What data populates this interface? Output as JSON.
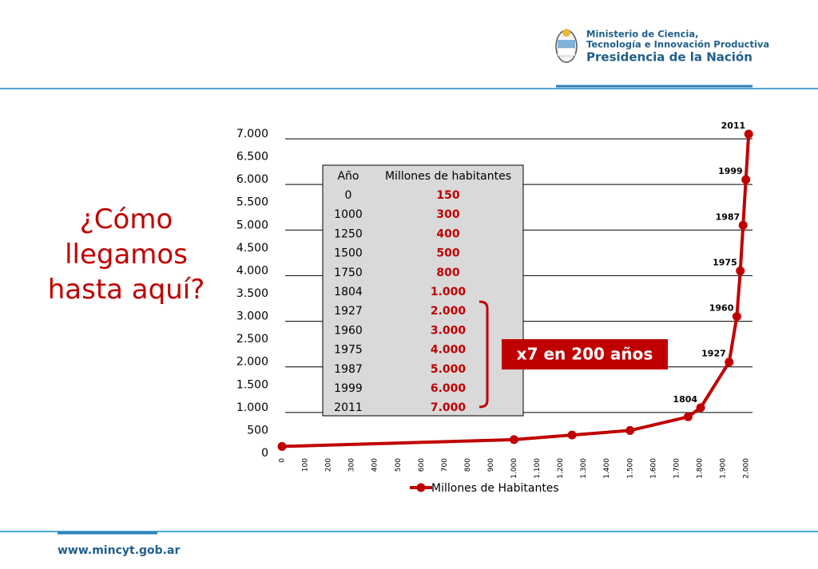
{
  "header": {
    "ministry": "Ministerio de Ciencia, Tecnología e Innovación Productiva",
    "presidency": "Presidencia de la Nación"
  },
  "footer": "www.mincyt.gob.ar",
  "chart_data": {
    "type": "line",
    "title": "¿Cómo llegamos hasta aquí?",
    "annotation": "x7 en 200  años",
    "table_headers": [
      "Año",
      "Millones de habitantes"
    ],
    "x": [
      0,
      1000,
      1250,
      1500,
      1750,
      1804,
      1927,
      1960,
      1975,
      1987,
      1999,
      2011
    ],
    "series": [
      {
        "name": "Millones de Habitantes",
        "color": "#c00000",
        "values": [
          150,
          300,
          400,
          500,
          800,
          1000,
          2000,
          3000,
          4000,
          5000,
          6000,
          7000
        ],
        "value_labels": [
          "150",
          "300",
          "400",
          "500",
          "800",
          "1.000",
          "2.000",
          "3.000",
          "4.000",
          "5.000",
          "6.000",
          "7.000"
        ]
      }
    ],
    "xlim": [
      0,
      2000
    ],
    "xticks": [
      0,
      100,
      200,
      300,
      400,
      500,
      600,
      700,
      800,
      900,
      {
        "value": 1000,
        "label": "1.000"
      },
      {
        "value": 1100,
        "label": "1.100"
      },
      {
        "value": 1200,
        "label": "1.200"
      },
      {
        "value": 1300,
        "label": "1.300"
      },
      {
        "value": 1400,
        "label": "1.400"
      },
      {
        "value": 1500,
        "label": "1.500"
      },
      {
        "value": 1600,
        "label": "1.600"
      },
      {
        "value": 1700,
        "label": "1.700"
      },
      {
        "value": 1800,
        "label": "1.800"
      },
      {
        "value": 1900,
        "label": "1.900"
      },
      {
        "value": 2000,
        "label": "2.000"
      }
    ],
    "ylim": [
      0,
      7000
    ],
    "yticks": [
      0,
      500,
      {
        "value": 1000,
        "label": "1.000"
      },
      {
        "value": 1500,
        "label": "1.500"
      },
      {
        "value": 2000,
        "label": "2.000"
      },
      {
        "value": 2500,
        "label": "2.500"
      },
      {
        "value": 3000,
        "label": "3.000"
      },
      {
        "value": 3500,
        "label": "3.500"
      },
      {
        "value": 4000,
        "label": "4.000"
      },
      {
        "value": 4500,
        "label": "4.500"
      },
      {
        "value": 5000,
        "label": "5.000"
      },
      {
        "value": 5500,
        "label": "5.500"
      },
      {
        "value": 6000,
        "label": "6.000"
      },
      {
        "value": 6500,
        "label": "6.500"
      },
      {
        "value": 7000,
        "label": "7.000"
      }
    ],
    "grid": true,
    "legend": "bottom"
  }
}
